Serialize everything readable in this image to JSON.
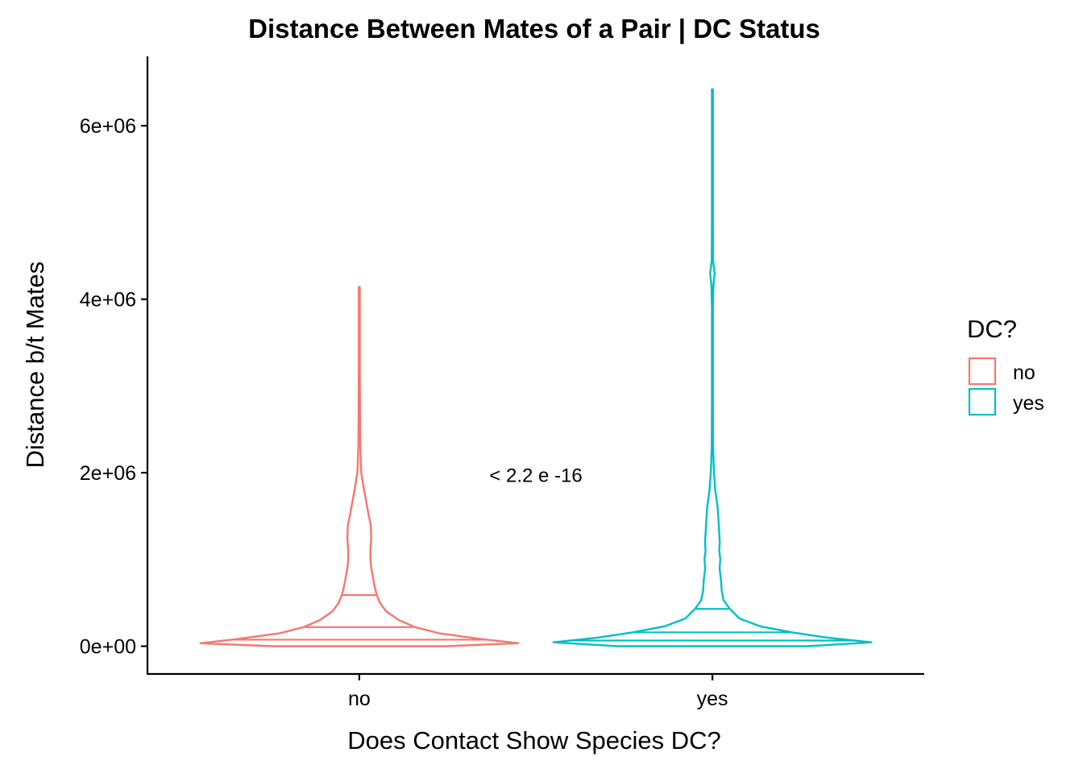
{
  "chart_data": {
    "type": "violin",
    "title": "Distance Between Mates of a Pair | DC Status",
    "xlabel": "Does Contact Show Species DC?",
    "ylabel": "Distance b/t Mates",
    "categories": [
      "no",
      "yes"
    ],
    "y_ticks": [
      0,
      2000000,
      4000000,
      6000000
    ],
    "y_tick_labels": [
      "0e+00",
      "2e+06",
      "4e+06",
      "6e+06"
    ],
    "ylim": [
      -320000,
      6800000
    ],
    "legend": {
      "title": "DC?",
      "position": "right",
      "entries": [
        {
          "label": "no",
          "color": "#F8766D"
        },
        {
          "label": "yes",
          "color": "#00BFC4"
        }
      ]
    },
    "annotation": {
      "text": "< 2.2 e -16",
      "x": 1.5,
      "y": 1970000
    },
    "series": [
      {
        "name": "no",
        "color": "#F8766D",
        "max": 4140000,
        "quantiles": [
          75000,
          220000,
          590000
        ],
        "profile": [
          [
            0,
            0.55
          ],
          [
            35000,
            1.0
          ],
          [
            80000,
            0.78
          ],
          [
            150000,
            0.5
          ],
          [
            220000,
            0.35
          ],
          [
            300000,
            0.25
          ],
          [
            400000,
            0.17
          ],
          [
            500000,
            0.13
          ],
          [
            590000,
            0.11
          ],
          [
            700000,
            0.095
          ],
          [
            800000,
            0.085
          ],
          [
            900000,
            0.075
          ],
          [
            1000000,
            0.07
          ],
          [
            1100000,
            0.07
          ],
          [
            1250000,
            0.075
          ],
          [
            1400000,
            0.072
          ],
          [
            1500000,
            0.06
          ],
          [
            1650000,
            0.045
          ],
          [
            1800000,
            0.03
          ],
          [
            2000000,
            0.012
          ],
          [
            2300000,
            0.006
          ],
          [
            2700000,
            0.004
          ],
          [
            3200000,
            0.003
          ],
          [
            3700000,
            0.002
          ],
          [
            4140000,
            0.001
          ]
        ]
      },
      {
        "name": "yes",
        "color": "#00BFC4",
        "max": 6420000,
        "quantiles": [
          65000,
          160000,
          430000
        ],
        "profile": [
          [
            0,
            0.6
          ],
          [
            45000,
            1.0
          ],
          [
            100000,
            0.72
          ],
          [
            160000,
            0.5
          ],
          [
            230000,
            0.3
          ],
          [
            320000,
            0.17
          ],
          [
            430000,
            0.11
          ],
          [
            530000,
            0.07
          ],
          [
            650000,
            0.058
          ],
          [
            750000,
            0.055
          ],
          [
            900000,
            0.045
          ],
          [
            1000000,
            0.05
          ],
          [
            1100000,
            0.043
          ],
          [
            1200000,
            0.046
          ],
          [
            1400000,
            0.04
          ],
          [
            1600000,
            0.033
          ],
          [
            1800000,
            0.018
          ],
          [
            2000000,
            0.01
          ],
          [
            2300000,
            0.004
          ],
          [
            2800000,
            0.003
          ],
          [
            3300000,
            0.003
          ],
          [
            3900000,
            0.003
          ],
          [
            4150000,
            0.006
          ],
          [
            4300000,
            0.014
          ],
          [
            4450000,
            0.004
          ],
          [
            4900000,
            0.003
          ],
          [
            5500000,
            0.002
          ],
          [
            6000000,
            0.002
          ],
          [
            6420000,
            0.001
          ]
        ]
      }
    ]
  }
}
